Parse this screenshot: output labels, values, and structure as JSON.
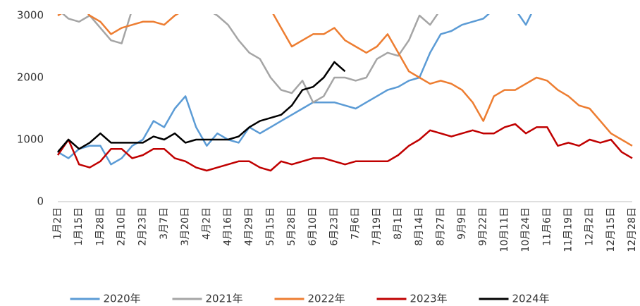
{
  "chart_data": {
    "type": "line",
    "categories": [
      "1月2日",
      null,
      "1月15日",
      null,
      "1月28日",
      null,
      "2月10日",
      null,
      "2月23日",
      null,
      "3月7日",
      null,
      "3月20日",
      null,
      "4月2日",
      null,
      "4月16日",
      null,
      "4月29日",
      null,
      "5月15日",
      null,
      "5月28日",
      null,
      "6月10日",
      null,
      "6月23日",
      null,
      "7月6日",
      null,
      "7月19日",
      null,
      "8月1日",
      null,
      "8月14日",
      null,
      "8月27日",
      null,
      "9月9日",
      null,
      "9月22日",
      null,
      "10月11日",
      null,
      "10月24日",
      null,
      "11月6日",
      null,
      "11月19日",
      null,
      "12月2日",
      null,
      "12月15日",
      null,
      "12月28日"
    ],
    "series": [
      {
        "name": "2020年",
        "color": "#5b9bd5",
        "values": [
          800,
          700,
          850,
          900,
          900,
          600,
          700,
          900,
          1000,
          1300,
          1200,
          1500,
          1700,
          1200,
          900,
          1100,
          1000,
          950,
          1200,
          1100,
          1200,
          1300,
          1400,
          1500,
          1600,
          1600,
          1600,
          1550,
          1500,
          1600,
          1700,
          1800,
          1850,
          1950,
          2000,
          2400,
          2700,
          2750,
          2850,
          2900,
          2950,
          3100,
          3200,
          3100,
          2850,
          3200,
          null,
          null,
          null,
          null,
          null,
          null,
          null,
          null,
          null
        ]
      },
      {
        "name": "2021年",
        "color": "#a5a5a5",
        "values": [
          3100,
          2950,
          2900,
          3000,
          2800,
          2600,
          2550,
          3100,
          3100,
          3200,
          3100,
          3100,
          3100,
          3100,
          3100,
          3000,
          2850,
          2600,
          2400,
          2300,
          2000,
          1800,
          1750,
          1950,
          1600,
          1700,
          2000,
          2000,
          1950,
          2000,
          2300,
          2400,
          2350,
          2600,
          3000,
          2850,
          3100,
          3200,
          3200,
          null,
          null,
          null,
          null,
          null,
          null,
          null,
          null,
          null,
          null,
          null,
          null,
          null,
          null,
          null,
          null
        ]
      },
      {
        "name": "2022年",
        "color": "#ed7d31",
        "values": [
          3000,
          3100,
          3200,
          3000,
          2900,
          2700,
          2800,
          2850,
          2900,
          2900,
          2850,
          3000,
          3100,
          3100,
          3100,
          3100,
          3100,
          3100,
          3100,
          3100,
          3100,
          2800,
          2500,
          2600,
          2700,
          2700,
          2800,
          2600,
          2500,
          2400,
          2500,
          2700,
          2400,
          2100,
          2000,
          1900,
          1950,
          1900,
          1800,
          1600,
          1300,
          1700,
          1800,
          1800,
          1900,
          2000,
          1950,
          1800,
          1700,
          1550,
          1500,
          1300,
          1100,
          1000,
          900
        ]
      },
      {
        "name": "2023年",
        "color": "#c00000",
        "values": [
          750,
          1000,
          600,
          550,
          650,
          850,
          850,
          700,
          750,
          850,
          850,
          700,
          650,
          550,
          500,
          550,
          600,
          650,
          650,
          550,
          500,
          650,
          600,
          650,
          700,
          700,
          650,
          600,
          650,
          650,
          650,
          650,
          750,
          900,
          1000,
          1150,
          1100,
          1050,
          1100,
          1150,
          1100,
          1100,
          1200,
          1250,
          1100,
          1200,
          1200,
          900,
          950,
          900,
          1000,
          950,
          1000,
          800,
          700
        ]
      },
      {
        "name": "2024年",
        "color": "#000000",
        "values": [
          800,
          1000,
          850,
          950,
          1100,
          950,
          950,
          950,
          950,
          1050,
          1000,
          1100,
          950,
          1000,
          1000,
          1000,
          1000,
          1050,
          1200,
          1300,
          1350,
          1400,
          1550,
          1800,
          1850,
          2000,
          2250,
          2100,
          null,
          null,
          null,
          null,
          null,
          null,
          null,
          null,
          null,
          null,
          null,
          null,
          null,
          null,
          null,
          null,
          null,
          null,
          null,
          null,
          null,
          null,
          null,
          null,
          null,
          null,
          null
        ]
      }
    ],
    "ylim": [
      0,
      3000
    ],
    "yticks": [
      0,
      1000,
      2000,
      3000
    ],
    "grid": false,
    "legend": "bottom"
  }
}
